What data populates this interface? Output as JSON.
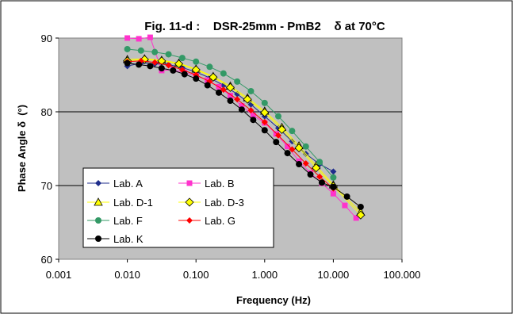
{
  "chart_data": {
    "type": "line",
    "title": "Fig. 11-d :    DSR-25mm - PmB2    δ at 70°C",
    "xlabel": "Frequency (Hz)",
    "ylabel": "Phase Angle δ  (°)",
    "x_scale": "log",
    "xlim": [
      0.001,
      100
    ],
    "ylim": [
      60,
      90
    ],
    "x_ticks": [
      0.001,
      0.01,
      0.1,
      1,
      10,
      100
    ],
    "x_tick_labels": [
      "0.001",
      "0.010",
      "0.100",
      "1.000",
      "10.000",
      "100.000"
    ],
    "y_ticks": [
      60,
      70,
      80,
      90
    ],
    "y_tick_labels": [
      "60",
      "70",
      "80",
      "90"
    ],
    "grid": "horizontal",
    "legend_position": "bottom-left",
    "colors": {
      "plot_background": "#c0c0c0",
      "page_background": "#ffffff"
    },
    "series": [
      {
        "name": "Lab. A",
        "color": "#1f2d8c",
        "marker": "diamond",
        "x": [
          0.01,
          0.0158,
          0.0251,
          0.0398,
          0.0631,
          0.1,
          0.158,
          0.251,
          0.398,
          0.631,
          1,
          1.58,
          2.51,
          3.98,
          6.31,
          10
        ],
        "y": [
          86.2,
          86.6,
          86.5,
          86.4,
          86.0,
          85.4,
          84.6,
          83.6,
          82.4,
          81.0,
          79.4,
          77.8,
          76.0,
          74.3,
          72.9,
          71.9
        ]
      },
      {
        "name": "Lab. B",
        "color": "#ff33cc",
        "marker": "square",
        "x": [
          0.01,
          0.0147,
          0.0215,
          0.0316,
          0.0464,
          0.0681,
          0.1,
          0.147,
          0.215,
          0.316,
          0.464,
          0.681,
          1,
          1.47,
          2.15,
          3.16,
          4.64,
          6.81,
          10,
          14.7,
          21.5
        ],
        "y": [
          90.0,
          89.9,
          90.1,
          85.6,
          85.7,
          85.3,
          84.9,
          84.3,
          83.4,
          82.2,
          80.8,
          79.5,
          78.5,
          77.0,
          75.3,
          73.3,
          71.7,
          70.3,
          68.9,
          67.3,
          65.6
        ]
      },
      {
        "name": "Lab. D-1",
        "color": "#ffff00",
        "marker": "triangle",
        "x": [
          0.01,
          0.0178,
          0.0316,
          0.0562,
          0.1,
          0.178,
          0.316,
          0.562,
          1,
          1.78,
          3.16,
          5.62,
          10,
          25
        ],
        "y": [
          87.1,
          87.2,
          87.0,
          86.6,
          85.8,
          84.8,
          83.5,
          81.9,
          80.1,
          77.9,
          75.4,
          72.7,
          70.1,
          66.4
        ]
      },
      {
        "name": "Lab. D-3",
        "color": "#ffff00",
        "marker": "diamond-open",
        "x": [
          0.01,
          0.0178,
          0.0316,
          0.0562,
          0.1,
          0.178,
          0.316,
          0.562,
          1,
          1.78,
          3.16,
          5.62,
          10,
          25
        ],
        "y": [
          86.9,
          87.1,
          86.9,
          86.5,
          85.7,
          84.7,
          83.3,
          81.7,
          79.9,
          77.6,
          75.1,
          72.4,
          69.9,
          66.0
        ]
      },
      {
        "name": "Lab. F",
        "color": "#339966",
        "marker": "circle",
        "x": [
          0.01,
          0.0158,
          0.0251,
          0.0398,
          0.0631,
          0.1,
          0.158,
          0.251,
          0.398,
          0.631,
          1,
          1.58,
          2.51,
          3.98,
          6.31,
          10
        ],
        "y": [
          88.5,
          88.3,
          88.1,
          87.8,
          87.3,
          86.8,
          86.1,
          85.2,
          84.1,
          82.8,
          81.2,
          79.4,
          77.4,
          75.3,
          73.2,
          71.1
        ]
      },
      {
        "name": "Lab. G",
        "color": "#ff0000",
        "marker": "diamond",
        "x": [
          0.01,
          0.0158,
          0.0251,
          0.0398,
          0.0631,
          0.1,
          0.158,
          0.251,
          0.398,
          0.631,
          1,
          1.58,
          2.51,
          3.98,
          6.31,
          10
        ],
        "y": [
          86.8,
          86.9,
          86.7,
          86.3,
          85.7,
          85.0,
          84.1,
          83.0,
          81.7,
          80.2,
          78.6,
          76.8,
          74.9,
          73.0,
          71.2,
          69.6
        ]
      },
      {
        "name": "Lab. K",
        "color": "#000000",
        "marker": "circle",
        "x": [
          0.01,
          0.0147,
          0.0215,
          0.0316,
          0.0464,
          0.0681,
          0.1,
          0.147,
          0.215,
          0.316,
          0.464,
          0.681,
          1,
          1.47,
          2.15,
          3.16,
          4.64,
          6.81,
          10,
          15.8,
          25
        ],
        "y": [
          86.6,
          86.4,
          86.2,
          85.9,
          85.6,
          85.1,
          84.5,
          83.6,
          82.6,
          81.5,
          80.3,
          78.9,
          77.5,
          75.9,
          74.4,
          72.9,
          71.5,
          70.4,
          69.8,
          68.5,
          67.1
        ]
      }
    ]
  }
}
